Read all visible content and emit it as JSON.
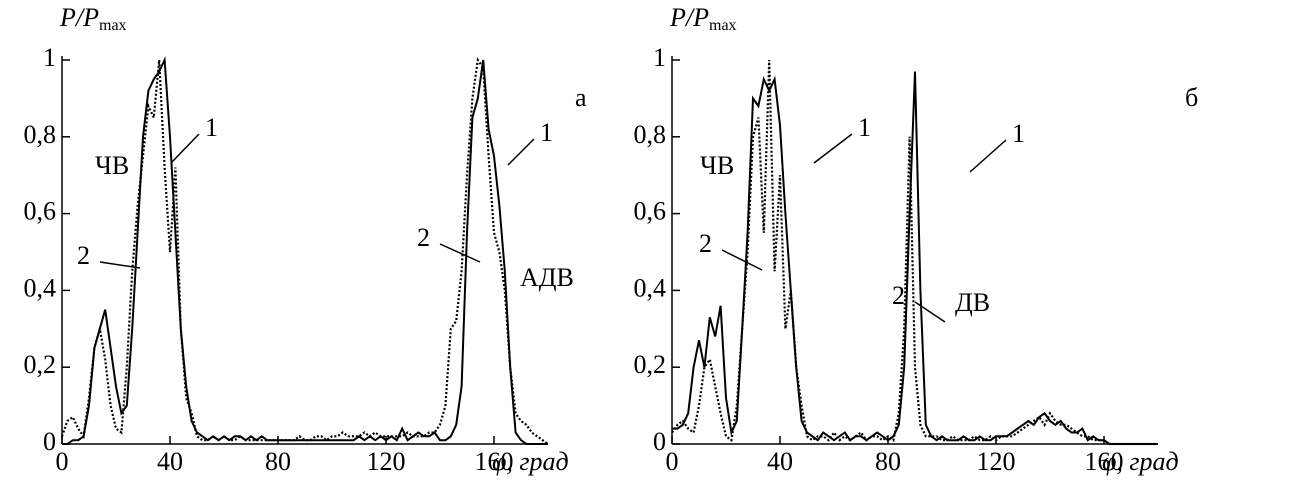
{
  "chart_data": [
    {
      "type": "line",
      "xlabel": "φ, град",
      "ylabel": "P/P",
      "ylabel_sub": "max",
      "xlim": [
        0,
        180
      ],
      "ylim": [
        0,
        1
      ],
      "xticks": [
        0,
        40,
        80,
        120,
        160
      ],
      "yticks": [
        0,
        {
          "value": 0.2,
          "label": "0,2"
        },
        {
          "value": 0.4,
          "label": "0,4"
        },
        {
          "value": 0.6,
          "label": "0,6"
        },
        {
          "value": 0.8,
          "label": "0,8"
        },
        1
      ],
      "annotations": [
        "ЧВ",
        "АДВ",
        "а"
      ],
      "x": [
        0,
        2,
        4,
        6,
        8,
        10,
        12,
        14,
        16,
        18,
        20,
        22,
        24,
        26,
        28,
        30,
        32,
        34,
        36,
        38,
        40,
        42,
        44,
        46,
        48,
        50,
        52,
        54,
        56,
        58,
        60,
        62,
        64,
        66,
        68,
        70,
        72,
        74,
        76,
        78,
        80,
        82,
        84,
        86,
        88,
        90,
        92,
        94,
        96,
        98,
        100,
        102,
        104,
        106,
        108,
        110,
        112,
        114,
        116,
        118,
        120,
        122,
        124,
        126,
        128,
        130,
        132,
        134,
        136,
        138,
        140,
        142,
        144,
        146,
        148,
        150,
        152,
        154,
        156,
        158,
        160,
        162,
        164,
        166,
        168,
        170,
        172,
        174,
        176,
        178,
        180
      ],
      "series": [
        {
          "name": "1",
          "color": "#000000",
          "style": "solid",
          "values": [
            0,
            0,
            0.01,
            0.01,
            0.02,
            0.1,
            0.25,
            0.3,
            0.35,
            0.25,
            0.15,
            0.08,
            0.1,
            0.3,
            0.55,
            0.8,
            0.92,
            0.95,
            0.97,
            1,
            0.8,
            0.55,
            0.3,
            0.15,
            0.06,
            0.03,
            0.02,
            0.01,
            0.02,
            0.01,
            0.02,
            0.01,
            0.02,
            0.02,
            0.01,
            0.02,
            0.01,
            0.02,
            0.01,
            0.01,
            0.01,
            0.01,
            0.01,
            0.01,
            0.01,
            0.01,
            0.01,
            0.01,
            0.01,
            0.01,
            0.01,
            0.01,
            0.01,
            0.01,
            0.01,
            0.02,
            0.01,
            0.02,
            0.01,
            0.02,
            0.01,
            0.02,
            0.01,
            0.04,
            0.01,
            0.02,
            0.03,
            0.02,
            0.02,
            0.03,
            0.01,
            0.01,
            0.02,
            0.05,
            0.15,
            0.55,
            0.85,
            0.9,
            1,
            0.82,
            0.75,
            0.62,
            0.45,
            0.2,
            0.03,
            0.01,
            0,
            0,
            0,
            0,
            0
          ]
        },
        {
          "name": "2",
          "color": "#000000",
          "style": "dotted",
          "values": [
            0.02,
            0.06,
            0.07,
            0.04,
            0.02,
            0.12,
            0.25,
            0.3,
            0.22,
            0.1,
            0.04,
            0.03,
            0.2,
            0.45,
            0.62,
            0.75,
            0.88,
            0.85,
            1,
            0.72,
            0.5,
            0.72,
            0.3,
            0.12,
            0.08,
            0.02,
            0.01,
            0.01,
            0.02,
            0.01,
            0.02,
            0.01,
            0.01,
            0.02,
            0.01,
            0.01,
            0.01,
            0.01,
            0.01,
            0.01,
            0.01,
            0.01,
            0.01,
            0.01,
            0.02,
            0.01,
            0.01,
            0.02,
            0.02,
            0.01,
            0.02,
            0.02,
            0.03,
            0.02,
            0.02,
            0.02,
            0.03,
            0.02,
            0.03,
            0.02,
            0.02,
            0.02,
            0.02,
            0.02,
            0.03,
            0.02,
            0.02,
            0.02,
            0.03,
            0.03,
            0.05,
            0.1,
            0.3,
            0.32,
            0.45,
            0.7,
            0.9,
            1,
            0.98,
            0.75,
            0.55,
            0.5,
            0.4,
            0.2,
            0.08,
            0.06,
            0.05,
            0.03,
            0.02,
            0.01,
            0
          ]
        }
      ]
    },
    {
      "type": "line",
      "xlabel": "φ, град",
      "ylabel": "P/P",
      "ylabel_sub": "max",
      "xlim": [
        0,
        180
      ],
      "ylim": [
        0,
        1
      ],
      "xticks": [
        0,
        40,
        80,
        120,
        160
      ],
      "yticks": [
        0,
        {
          "value": 0.2,
          "label": "0,2"
        },
        {
          "value": 0.4,
          "label": "0,4"
        },
        {
          "value": 0.6,
          "label": "0,6"
        },
        {
          "value": 0.8,
          "label": "0,8"
        },
        1
      ],
      "annotations": [
        "ЧВ",
        "ДВ",
        "б"
      ],
      "x": [
        0,
        2,
        4,
        6,
        8,
        10,
        12,
        14,
        16,
        18,
        20,
        22,
        24,
        26,
        28,
        30,
        32,
        34,
        36,
        38,
        40,
        42,
        44,
        46,
        48,
        50,
        52,
        54,
        56,
        58,
        60,
        62,
        64,
        66,
        68,
        70,
        72,
        74,
        76,
        78,
        80,
        82,
        84,
        86,
        88,
        90,
        92,
        94,
        96,
        98,
        100,
        102,
        104,
        106,
        108,
        110,
        112,
        114,
        116,
        118,
        120,
        122,
        124,
        126,
        128,
        130,
        132,
        134,
        136,
        138,
        140,
        142,
        144,
        146,
        148,
        150,
        152,
        154,
        156,
        158,
        160,
        162,
        164,
        166,
        168,
        170,
        172,
        174,
        176,
        178,
        180
      ],
      "series": [
        {
          "name": "1",
          "color": "#000000",
          "style": "solid",
          "values": [
            0.04,
            0.04,
            0.05,
            0.08,
            0.2,
            0.27,
            0.2,
            0.33,
            0.28,
            0.36,
            0.12,
            0.03,
            0.06,
            0.3,
            0.55,
            0.9,
            0.88,
            0.95,
            0.92,
            0.95,
            0.83,
            0.6,
            0.4,
            0.2,
            0.06,
            0.03,
            0.02,
            0.01,
            0.03,
            0.02,
            0.01,
            0.02,
            0.03,
            0.01,
            0.02,
            0.02,
            0.01,
            0.02,
            0.03,
            0.02,
            0.01,
            0.02,
            0.05,
            0.2,
            0.6,
            0.97,
            0.4,
            0.05,
            0.02,
            0.01,
            0.02,
            0.01,
            0.01,
            0.01,
            0.02,
            0.01,
            0.01,
            0.02,
            0.01,
            0.01,
            0.02,
            0.02,
            0.02,
            0.03,
            0.04,
            0.05,
            0.06,
            0.05,
            0.07,
            0.08,
            0.06,
            0.05,
            0.06,
            0.04,
            0.03,
            0.03,
            0.04,
            0.01,
            0.02,
            0.01,
            0.01,
            0,
            0,
            0,
            0,
            0,
            0,
            0,
            0,
            0,
            0
          ]
        },
        {
          "name": "2",
          "color": "#000000",
          "style": "dotted",
          "values": [
            0.03,
            0.05,
            0.06,
            0.04,
            0.03,
            0.1,
            0.2,
            0.22,
            0.15,
            0.08,
            0.02,
            0.01,
            0.1,
            0.3,
            0.5,
            0.8,
            0.85,
            0.55,
            1,
            0.45,
            0.7,
            0.3,
            0.4,
            0.2,
            0.1,
            0.02,
            0.01,
            0.02,
            0.02,
            0.01,
            0.03,
            0.01,
            0.02,
            0.01,
            0.02,
            0.03,
            0.01,
            0.02,
            0.02,
            0.01,
            0.02,
            0.01,
            0.08,
            0.3,
            0.8,
            0.2,
            0.05,
            0.02,
            0.02,
            0.02,
            0.01,
            0.01,
            0.02,
            0.01,
            0.01,
            0.01,
            0.02,
            0.01,
            0.01,
            0.02,
            0.01,
            0.02,
            0.02,
            0.02,
            0.03,
            0.04,
            0.05,
            0.06,
            0.07,
            0.05,
            0.08,
            0.06,
            0.05,
            0.05,
            0.04,
            0.03,
            0.02,
            0.02,
            0.01,
            0.01,
            0.01,
            0,
            0,
            0,
            0,
            0,
            0,
            0,
            0,
            0,
            0
          ]
        }
      ]
    }
  ]
}
